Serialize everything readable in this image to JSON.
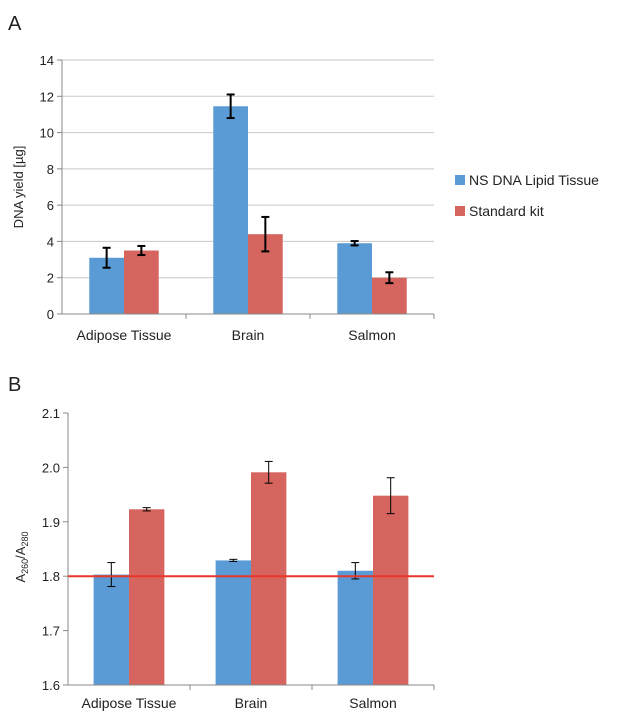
{
  "colors": {
    "ns": "#5B9BD5",
    "std": "#D5655E",
    "ref_line": "#E8372A",
    "grid": "#C8C8C8"
  },
  "chart_data": [
    {
      "panel": "A",
      "type": "bar",
      "categories": [
        "Adipose Tissue",
        "Brain",
        "Salmon"
      ],
      "ylabel": "DNA yield [µg]",
      "ylim": [
        0,
        14
      ],
      "yticks": [
        0,
        2,
        4,
        6,
        8,
        10,
        12,
        14
      ],
      "grid": true,
      "legend_placement": "right",
      "series": [
        {
          "name": "NS DNA Lipid Tissue",
          "values": [
            3.1,
            11.45,
            3.9
          ],
          "errors": [
            0.55,
            0.65,
            0.12
          ]
        },
        {
          "name": "Standard kit",
          "values": [
            3.5,
            4.4,
            2.0
          ],
          "errors": [
            0.25,
            0.95,
            0.3
          ]
        }
      ]
    },
    {
      "panel": "B",
      "type": "bar",
      "categories": [
        "Adipose Tissue",
        "Brain",
        "Salmon"
      ],
      "ylabel_main": "A",
      "ylabel_sub1": "260",
      "ylabel_mid": "/A",
      "ylabel_sub2": "280",
      "ylim": [
        1.6,
        2.1
      ],
      "yticks": [
        "1.6",
        "1.7",
        "1.8",
        "1.9",
        "2.0",
        "2.1"
      ],
      "grid": false,
      "reference_line": 1.8,
      "series": [
        {
          "name": "NS DNA Lipid Tissue",
          "values": [
            1.803,
            1.829,
            1.81
          ],
          "errors": [
            0.022,
            0.002,
            0.015
          ]
        },
        {
          "name": "Standard kit",
          "values": [
            1.923,
            1.991,
            1.948
          ],
          "errors": [
            0.003,
            0.02,
            0.033
          ]
        }
      ]
    }
  ]
}
